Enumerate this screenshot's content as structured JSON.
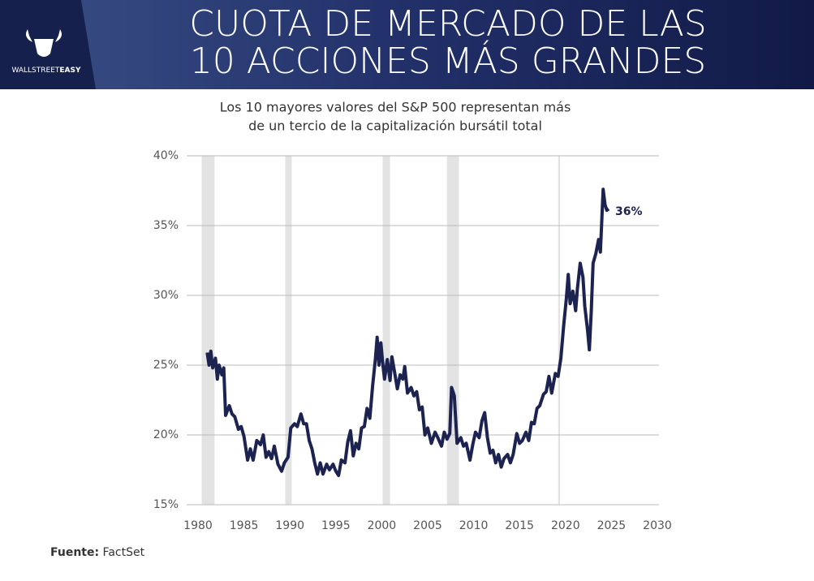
{
  "header": {
    "title": [
      "CUOTA DE MERCADO DE LAS",
      "10 ACCIONES MÁS GRANDES"
    ],
    "logo": [
      "WALLSTREET",
      "EASY"
    ]
  },
  "chart_data": {
    "type": "line",
    "subtitle": [
      "Los 10 mayores valores del S&P 500 representan más",
      "de un tercio de la capitalización bursátil total"
    ],
    "x": [
      1981.0,
      1981.2,
      1981.4,
      1981.6,
      1981.9,
      1982.1,
      1982.3,
      1982.6,
      1982.8,
      1983.0,
      1983.4,
      1983.7,
      1984.0,
      1984.4,
      1984.7,
      1985.0,
      1985.4,
      1985.7,
      1986.0,
      1986.4,
      1986.8,
      1987.1,
      1987.4,
      1987.7,
      1988.0,
      1988.3,
      1988.7,
      1989.1,
      1989.4,
      1989.8,
      1990.1,
      1990.5,
      1990.8,
      1991.2,
      1991.5,
      1991.8,
      1992.1,
      1992.4,
      1992.7,
      1993.0,
      1993.3,
      1993.6,
      1994.0,
      1994.3,
      1994.7,
      1995.0,
      1995.3,
      1995.6,
      1996.0,
      1996.3,
      1996.6,
      1996.9,
      1997.2,
      1997.5,
      1997.8,
      1998.1,
      1998.4,
      1998.7,
      1999.0,
      1999.3,
      1999.5,
      1999.7,
      1999.9,
      2000.1,
      2000.3,
      2000.6,
      2000.9,
      2001.1,
      2001.4,
      2001.7,
      2002.0,
      2002.3,
      2002.5,
      2002.8,
      2003.2,
      2003.5,
      2003.8,
      2004.1,
      2004.4,
      2004.7,
      2005.0,
      2005.4,
      2005.8,
      2006.1,
      2006.5,
      2006.8,
      2007.1,
      2007.4,
      2007.6,
      2007.9,
      2008.2,
      2008.6,
      2008.9,
      2009.2,
      2009.6,
      2009.9,
      2010.2,
      2010.6,
      2010.9,
      2011.2,
      2011.5,
      2011.8,
      2012.1,
      2012.4,
      2012.7,
      2013.0,
      2013.3,
      2013.7,
      2014.0,
      2014.3,
      2014.7,
      2015.0,
      2015.3,
      2015.7,
      2016.0,
      2016.3,
      2016.6,
      2016.9,
      2017.2,
      2017.6,
      2017.9,
      2018.2,
      2018.5,
      2018.9,
      2019.2,
      2019.5,
      2019.8,
      2020.1,
      2020.3,
      2020.5,
      2020.8,
      2021.1,
      2021.3,
      2021.6,
      2021.9,
      2022.1,
      2022.4,
      2022.6,
      2022.8,
      2023.0,
      2023.3,
      2023.6,
      2023.8,
      2024.1,
      2024.3,
      2024.5,
      2024.7
    ],
    "values": [
      25.9,
      25.0,
      26.0,
      24.8,
      25.5,
      24.0,
      25.0,
      24.3,
      24.8,
      21.4,
      22.1,
      21.5,
      21.3,
      20.4,
      20.6,
      19.9,
      18.2,
      19.0,
      18.2,
      19.6,
      19.3,
      20.0,
      18.4,
      18.8,
      18.3,
      19.2,
      17.9,
      17.4,
      18.0,
      18.4,
      20.5,
      20.8,
      20.6,
      21.5,
      20.8,
      20.8,
      19.6,
      19.0,
      18.0,
      17.2,
      18.0,
      17.2,
      17.9,
      17.5,
      17.9,
      17.4,
      17.1,
      18.2,
      18.0,
      19.5,
      20.3,
      18.5,
      19.4,
      19.0,
      20.5,
      20.6,
      21.9,
      21.2,
      23.5,
      25.4,
      27.0,
      25.0,
      26.6,
      25.2,
      24.0,
      25.4,
      23.9,
      25.6,
      24.5,
      23.3,
      24.3,
      24.0,
      24.9,
      23.0,
      23.4,
      22.8,
      23.1,
      21.8,
      22.0,
      20.0,
      20.5,
      19.4,
      20.2,
      19.8,
      19.2,
      20.2,
      19.7,
      20.1,
      23.4,
      22.8,
      19.4,
      19.8,
      19.2,
      19.4,
      18.2,
      19.3,
      20.2,
      19.8,
      21.0,
      21.6,
      19.8,
      18.7,
      18.9,
      18.0,
      18.6,
      17.7,
      18.3,
      18.6,
      18.0,
      18.6,
      20.1,
      19.4,
      19.6,
      20.2,
      19.6,
      20.9,
      20.8,
      21.9,
      22.1,
      22.9,
      23.1,
      24.2,
      23.0,
      24.4,
      24.2,
      25.5,
      27.8,
      29.8,
      31.5,
      29.4,
      30.3,
      28.9,
      30.5,
      32.3,
      31.3,
      29.2,
      27.5,
      26.1,
      28.8,
      32.3,
      33.0,
      34.0,
      33.1,
      37.6,
      36.5,
      36.1,
      36.2
    ],
    "color": "#1c2350",
    "annotation": {
      "value": 36,
      "label": "36%"
    },
    "recessions": [
      [
        1980.4,
        1981.8
      ],
      [
        1989.5,
        1990.2
      ],
      [
        2000.1,
        2000.9
      ],
      [
        2007.1,
        2008.4
      ],
      [
        2019.2,
        2019.4
      ]
    ],
    "xlim": [
      1980,
      2030
    ],
    "xticks": [
      1980,
      1985,
      1990,
      1995,
      2000,
      2005,
      2010,
      2015,
      2020,
      2025,
      2030
    ],
    "ylim": [
      15,
      40
    ],
    "yticks": [
      {
        "value": 15,
        "label": "15%"
      },
      {
        "value": 20,
        "label": "20%"
      },
      {
        "value": 25,
        "label": "25%"
      },
      {
        "value": 30,
        "label": "30%"
      },
      {
        "value": 35,
        "label": "35%"
      },
      {
        "value": 40,
        "label": "40%"
      }
    ],
    "grid": true,
    "source": [
      "Fuente:",
      "FactSet"
    ]
  }
}
